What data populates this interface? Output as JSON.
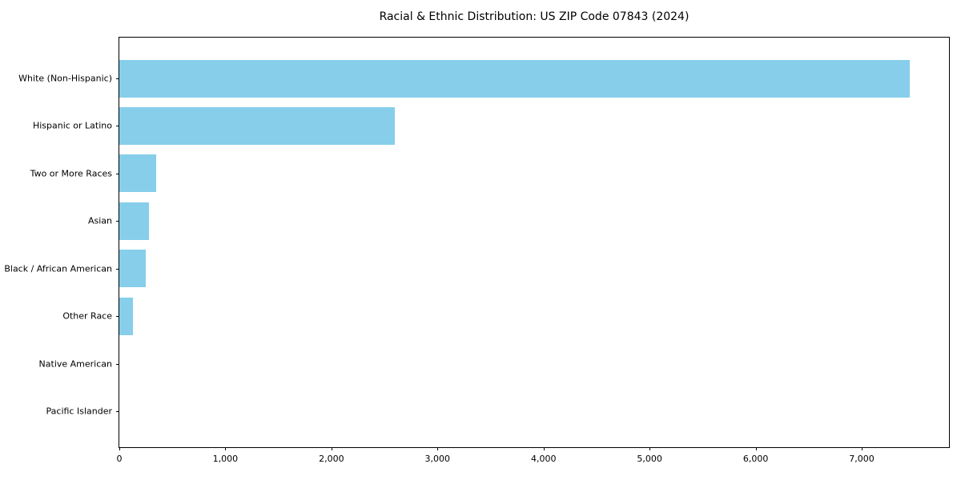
{
  "chart_data": {
    "type": "bar",
    "orientation": "horizontal",
    "title": "Racial & Ethnic Distribution: US ZIP Code 07843 (2024)",
    "categories": [
      "White (Non-Hispanic)",
      "Hispanic or Latino",
      "Two or More Races",
      "Asian",
      "Black / African American",
      "Other Race",
      "Native American",
      "Pacific Islander"
    ],
    "values": [
      7450,
      2600,
      350,
      280,
      250,
      130,
      0,
      0
    ],
    "xlabel": "",
    "ylabel": "",
    "xlim": [
      0,
      7823
    ],
    "xticks": [
      0,
      1000,
      2000,
      3000,
      4000,
      5000,
      6000,
      7000
    ],
    "xtick_labels": [
      "0",
      "1,000",
      "2,000",
      "3,000",
      "4,000",
      "5,000",
      "6,000",
      "7,000"
    ],
    "bar_color": "#87CEEB",
    "background_color": "#ffffff",
    "spine_color": "#000000",
    "text_color": "#000000",
    "grid": false,
    "legend": null
  }
}
